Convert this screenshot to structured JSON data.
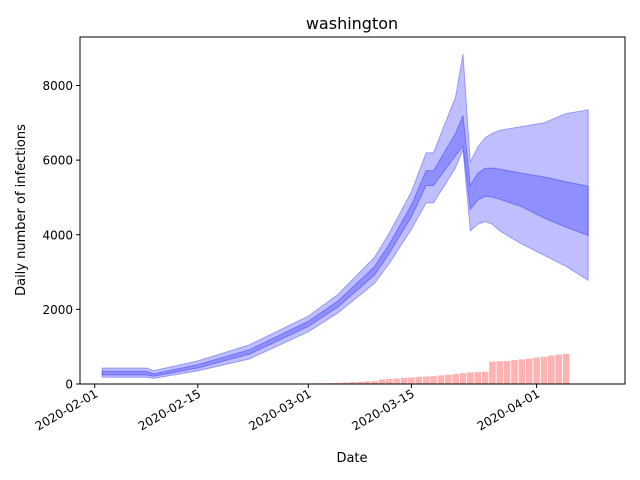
{
  "chart_data": {
    "type": "area",
    "title": "washington",
    "xlabel": "Date",
    "ylabel": "Daily number of infections",
    "x_ticks": [
      "2020-02-01",
      "2020-02-15",
      "2020-03-01",
      "2020-03-15",
      "2020-04-01"
    ],
    "y_ticks": [
      0,
      2000,
      4000,
      6000,
      8000
    ],
    "xlim": [
      "2020-01-30",
      "2020-04-13"
    ],
    "ylim": [
      0,
      9300
    ],
    "colors": {
      "band": "#0000ff",
      "bars": "#ff7f7f"
    },
    "band_dates": [
      "2020-02-02",
      "2020-02-08",
      "2020-02-09",
      "2020-02-15",
      "2020-02-22",
      "2020-03-01",
      "2020-03-05",
      "2020-03-10",
      "2020-03-12",
      "2020-03-15",
      "2020-03-17",
      "2020-03-18",
      "2020-03-21",
      "2020-03-22",
      "2020-03-23",
      "2020-03-24",
      "2020-03-25",
      "2020-03-26",
      "2020-03-27",
      "2020-03-30",
      "2020-04-02",
      "2020-04-05",
      "2020-04-08"
    ],
    "outer_upper": [
      430,
      430,
      360,
      620,
      1050,
      1820,
      2400,
      3400,
      4050,
      5150,
      6200,
      6200,
      7700,
      8850,
      5950,
      6350,
      6600,
      6720,
      6800,
      6900,
      7000,
      7250,
      7350
    ],
    "inner_upper": [
      340,
      340,
      270,
      520,
      920,
      1680,
      2220,
      3150,
      3750,
      4800,
      5720,
      5720,
      6720,
      7200,
      5320,
      5650,
      5780,
      5790,
      5760,
      5650,
      5550,
      5420,
      5300
    ],
    "inner_lower": [
      240,
      240,
      210,
      430,
      800,
      1540,
      2060,
      2920,
      3500,
      4480,
      5320,
      5320,
      6120,
      6380,
      4680,
      4930,
      5030,
      5010,
      4950,
      4750,
      4450,
      4200,
      3980
    ],
    "outer_lower": [
      180,
      180,
      150,
      350,
      670,
      1400,
      1900,
      2700,
      3230,
      4150,
      4850,
      4850,
      5800,
      6280,
      4100,
      4280,
      4350,
      4280,
      4100,
      3750,
      3450,
      3150,
      2780
    ],
    "bar_dates": [
      "2020-02-13",
      "2020-02-14",
      "2020-02-15",
      "2020-02-16",
      "2020-02-17",
      "2020-02-18",
      "2020-02-19",
      "2020-02-20",
      "2020-02-21",
      "2020-02-22",
      "2020-02-23",
      "2020-02-24",
      "2020-02-25",
      "2020-02-26",
      "2020-02-27",
      "2020-02-28",
      "2020-02-29",
      "2020-03-01",
      "2020-03-02",
      "2020-03-03",
      "2020-03-04",
      "2020-03-05",
      "2020-03-06",
      "2020-03-07",
      "2020-03-08",
      "2020-03-09",
      "2020-03-10",
      "2020-03-11",
      "2020-03-12",
      "2020-03-13",
      "2020-03-14",
      "2020-03-15",
      "2020-03-16",
      "2020-03-17",
      "2020-03-18",
      "2020-03-19",
      "2020-03-20",
      "2020-03-21",
      "2020-03-22",
      "2020-03-23",
      "2020-03-24",
      "2020-03-25",
      "2020-03-26",
      "2020-03-27",
      "2020-03-28",
      "2020-03-29",
      "2020-03-30",
      "2020-03-31",
      "2020-04-01",
      "2020-04-02",
      "2020-04-03",
      "2020-04-04",
      "2020-04-05"
    ],
    "bar_values": [
      2,
      2,
      3,
      3,
      3,
      4,
      4,
      5,
      5,
      6,
      6,
      7,
      8,
      9,
      10,
      12,
      14,
      15,
      18,
      20,
      24,
      30,
      40,
      50,
      60,
      70,
      80,
      120,
      135,
      150,
      160,
      175,
      190,
      200,
      210,
      230,
      250,
      270,
      290,
      310,
      320,
      330,
      600,
      610,
      620,
      640,
      660,
      680,
      710,
      730,
      760,
      790,
      810
    ]
  }
}
